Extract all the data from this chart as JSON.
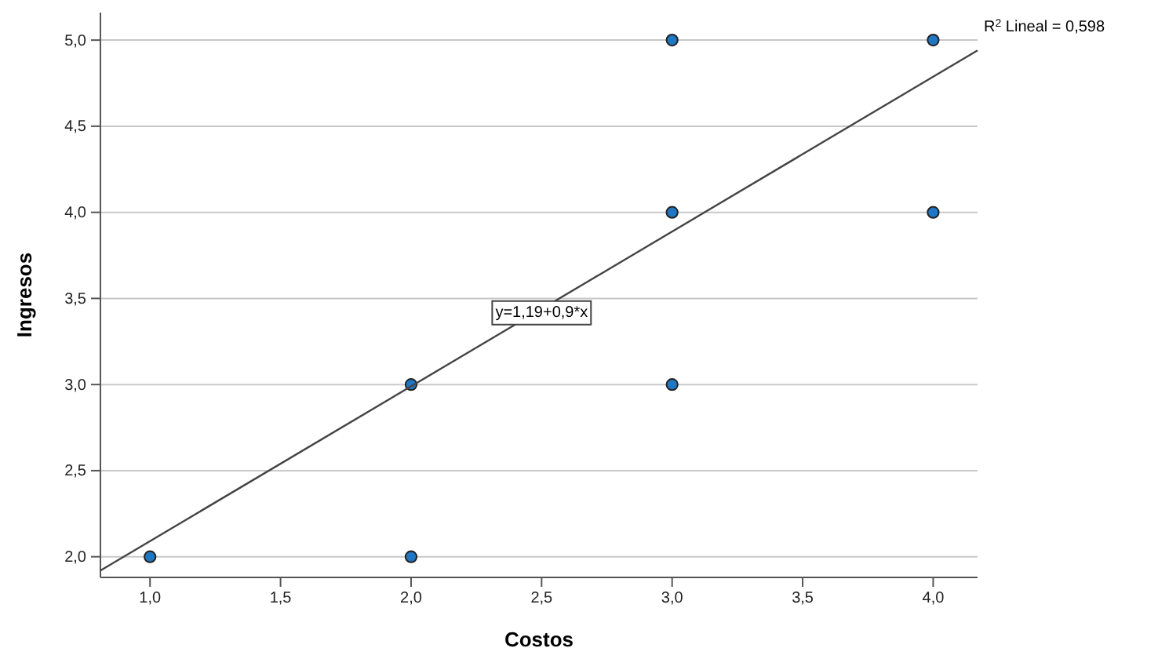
{
  "chart_data": {
    "type": "scatter",
    "xlabel": "Costos",
    "ylabel": "Ingresos",
    "xlim": [
      0.81,
      4.17
    ],
    "ylim": [
      1.88,
      5.16
    ],
    "xticks": [
      {
        "value": 1,
        "label": "1,0"
      },
      {
        "value": 1.5,
        "label": "1,5"
      },
      {
        "value": 2,
        "label": "2,0"
      },
      {
        "value": 2.5,
        "label": "2,5"
      },
      {
        "value": 3,
        "label": "3,0"
      },
      {
        "value": 3.5,
        "label": "3,5"
      },
      {
        "value": 4,
        "label": "4,0"
      }
    ],
    "yticks": [
      {
        "value": 2,
        "label": "2,0"
      },
      {
        "value": 2.5,
        "label": "2,5"
      },
      {
        "value": 3,
        "label": "3,0"
      },
      {
        "value": 3.5,
        "label": "3,5"
      },
      {
        "value": 4,
        "label": "4,0"
      },
      {
        "value": 4.5,
        "label": "4,5"
      },
      {
        "value": 5,
        "label": "5,0"
      }
    ],
    "grid": "y",
    "marker": "circle",
    "series": [
      {
        "color": "#1f77c4",
        "x": [
          1,
          2,
          2,
          3,
          3,
          3,
          4,
          4
        ],
        "values": [
          2,
          2,
          3,
          3,
          4,
          5,
          4,
          5
        ]
      },
      {
        "type": "line",
        "color": "#444444",
        "marker": "none",
        "x": [
          0.81,
          4.17
        ],
        "values": [
          1.92,
          4.94
        ]
      }
    ],
    "annotations": [
      {
        "text": "y=1,19+0,9*x",
        "x": 2.5,
        "y": 3.43
      },
      "R$^{2}$ Lineal = 0,598"
    ]
  }
}
